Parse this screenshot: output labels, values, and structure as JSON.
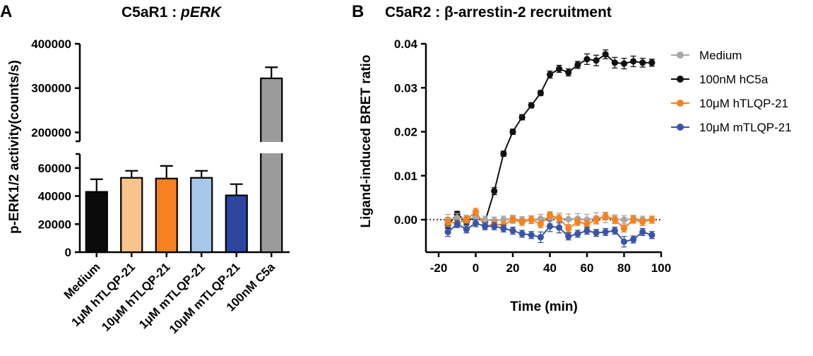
{
  "chart_data": [
    {
      "panel_letter": "A",
      "type": "bar",
      "title_prefix": "C5aR1 : ",
      "title_italic": "pERK",
      "ylabel": "p-ERK1/2 activity(counts/s)",
      "xlabel": "",
      "y_axis_break": [
        70000,
        180000
      ],
      "ylim": [
        0,
        400000
      ],
      "yticks_lower": [
        0,
        20000,
        40000,
        60000
      ],
      "yticks_upper": [
        200000,
        300000,
        400000
      ],
      "categories": [
        "Medium",
        "1μM hTLQP-21",
        "10μM hTLQP-21",
        "1μM mTLQP-21",
        "10μM mTLQP-21",
        "100nM C5a"
      ],
      "values": [
        43000,
        53000,
        52500,
        53000,
        40500,
        322000
      ],
      "errors": [
        9000,
        5000,
        9000,
        5000,
        8000,
        25000
      ],
      "colors": [
        "#0b0b0b",
        "#fbc38c",
        "#f5821f",
        "#a6c8e9",
        "#2e46a0",
        "#9b9b9e"
      ]
    },
    {
      "panel_letter": "B",
      "type": "line",
      "title": "C5aR2 : β-arrestin-2 recruitment",
      "xlabel": "Time (min)",
      "ylabel": "Ligand-induced BRET ratio",
      "xlim": [
        -25,
        100
      ],
      "ylim": [
        -0.007,
        0.041
      ],
      "xticks": [
        -20,
        0,
        20,
        40,
        60,
        80,
        100
      ],
      "yticks": [
        0.0,
        0.01,
        0.02,
        0.03,
        0.04
      ],
      "ytick_labels": [
        "0.00",
        "0.01",
        "0.02",
        "0.03",
        "0.04"
      ],
      "x": [
        -15,
        -10,
        -5,
        0,
        5,
        10,
        15,
        20,
        25,
        30,
        35,
        40,
        45,
        50,
        55,
        60,
        65,
        70,
        75,
        80,
        85,
        90,
        95
      ],
      "legend_position": "top-right",
      "series": [
        {
          "name": "Medium",
          "color": "#a8a8a8",
          "values": [
            0.0,
            0.0004,
            0.0002,
            0.0005,
            0.0,
            -0.0002,
            0.0,
            0.0002,
            -0.0001,
            0.0,
            0.0002,
            0.0004,
            0.0003,
            0.0001,
            0.0002,
            0.0,
            0.0003,
            0.0005,
            0.0001,
            0.0,
            0.0002,
            0.0,
            0.0
          ],
          "errors": [
            0.0012,
            0.001,
            0.0008,
            0.0009,
            0.0008,
            0.0008,
            0.0008,
            0.0008,
            0.0008,
            0.0009,
            0.001,
            0.0012,
            0.0012,
            0.0012,
            0.0012,
            0.0012,
            0.0013,
            0.0012,
            0.001,
            0.0009,
            0.0008,
            0.0008,
            0.0008
          ]
        },
        {
          "name": "100nM hC5a",
          "color": "#111111",
          "values": [
            -0.0012,
            0.0013,
            -0.0005,
            0.0008,
            -0.0005,
            0.0065,
            0.015,
            0.02,
            0.0233,
            0.026,
            0.0288,
            0.033,
            0.0343,
            0.0335,
            0.0352,
            0.0365,
            0.0362,
            0.0376,
            0.0357,
            0.0355,
            0.036,
            0.0357,
            0.0357
          ],
          "errors": [
            0.0008,
            0.0006,
            0.0006,
            0.0006,
            0.0006,
            0.0008,
            0.0006,
            0.0006,
            0.0006,
            0.0006,
            0.0006,
            0.0008,
            0.0008,
            0.0008,
            0.0008,
            0.0012,
            0.0012,
            0.001,
            0.0012,
            0.0012,
            0.0012,
            0.001,
            0.0008
          ]
        },
        {
          "name": "10μM hTLQP-21",
          "color": "#f5821f",
          "values": [
            -0.0005,
            -0.0008,
            0.0,
            0.0018,
            -0.0015,
            -0.001,
            -0.0012,
            0.0,
            -0.0005,
            0.0,
            -0.001,
            0.001,
            0.0003,
            -0.002,
            -0.0005,
            -0.001,
            0.0,
            0.0008,
            0.0,
            -0.002,
            0.0,
            -0.0005,
            0.0
          ],
          "errors": [
            0.001,
            0.0008,
            0.0008,
            0.0008,
            0.0008,
            0.0008,
            0.0008,
            0.0008,
            0.0008,
            0.0008,
            0.0008,
            0.0008,
            0.0008,
            0.0008,
            0.0008,
            0.0008,
            0.0008,
            0.0008,
            0.0008,
            0.0008,
            0.0008,
            0.0008,
            0.0008
          ]
        },
        {
          "name": "10μM mTLQP-21",
          "color": "#3a54a8",
          "values": [
            -0.0028,
            -0.001,
            -0.0022,
            -0.0008,
            -0.0015,
            -0.0015,
            -0.002,
            -0.0025,
            -0.0032,
            -0.0035,
            -0.004,
            -0.0015,
            -0.0018,
            -0.0038,
            -0.0032,
            -0.0025,
            -0.003,
            -0.0028,
            -0.0025,
            -0.005,
            -0.0045,
            -0.0028,
            -0.0035
          ],
          "errors": [
            0.001,
            0.0008,
            0.0008,
            0.0008,
            0.0008,
            0.0008,
            0.0008,
            0.0008,
            0.0008,
            0.0008,
            0.0012,
            0.0012,
            0.0012,
            0.0008,
            0.0008,
            0.0008,
            0.0008,
            0.0008,
            0.0008,
            0.0012,
            0.0008,
            0.0008,
            0.0008
          ]
        }
      ]
    }
  ]
}
